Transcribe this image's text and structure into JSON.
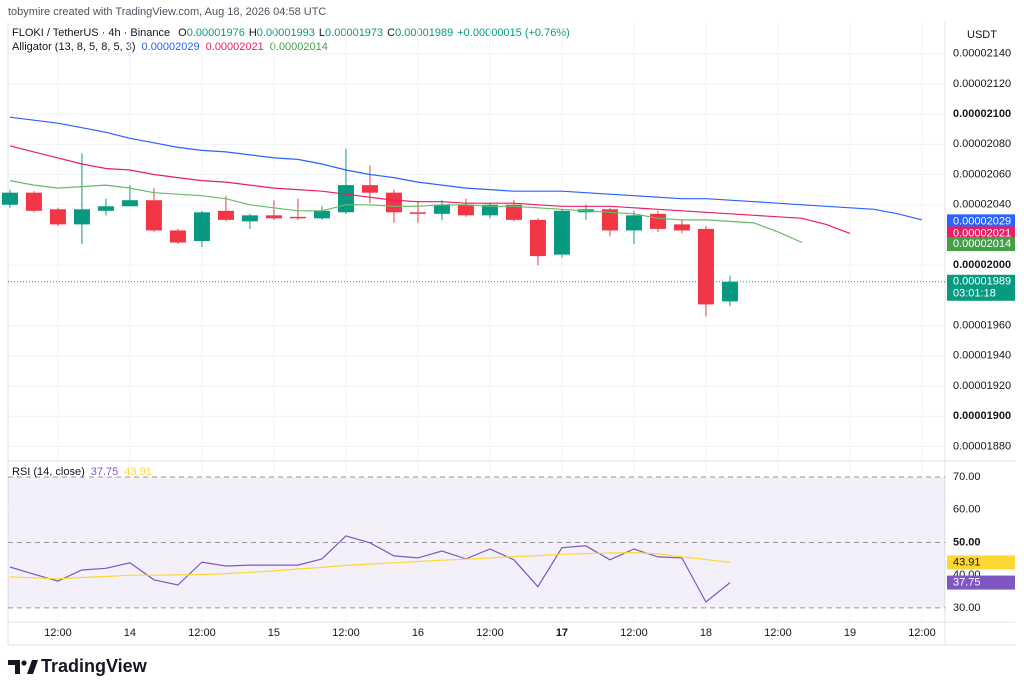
{
  "header": {
    "credit": "tobymire created with TradingView.com, Aug 18, 2026 04:58 UTC",
    "currency": "USDT"
  },
  "legend": {
    "symbol": "FLOKI / TetherUS · 4h · Binance",
    "fields": [
      {
        "key": "O",
        "value": "0.00001976"
      },
      {
        "key": "H",
        "value": "0.00001993"
      },
      {
        "key": "L",
        "value": "0.00001973"
      },
      {
        "key": "C",
        "value": "0.00001989"
      }
    ],
    "change": "+0.00000015 (+0.76%)"
  },
  "footer": {
    "brand": "TradingView"
  },
  "chart_data": [
    {
      "type": "candlestick",
      "indicator_label": "Alligator (13, 8, 5, 8, 5, 3)",
      "legend_values": [
        "0.00002029",
        "0.00002021",
        "0.00002014"
      ],
      "up_color": "#089981",
      "down_color": "#f23645",
      "categories": [
        null,
        null,
        null,
        null,
        null,
        null,
        null,
        null,
        null,
        null,
        null,
        null,
        null,
        null,
        null,
        null,
        null,
        null,
        null,
        null,
        null,
        null,
        null,
        null,
        null,
        null,
        null,
        null,
        null,
        null,
        null,
        null,
        null,
        null,
        null,
        null,
        null,
        null,
        null
      ],
      "open": [
        2.04e-05,
        2.048e-05,
        2.037e-05,
        2.027e-05,
        2.036e-05,
        2.039e-05,
        2.043e-05,
        2.023e-05,
        2.016e-05,
        2.036e-05,
        2.029e-05,
        2.033e-05,
        2.032e-05,
        2.031e-05,
        2.035e-05,
        2.053e-05,
        2.048e-05,
        2.035e-05,
        2.034e-05,
        2.04e-05,
        2.033e-05,
        2.04e-05,
        2.03e-05,
        2.007e-05,
        2.035e-05,
        2.037e-05,
        2.023e-05,
        2.034e-05,
        2.027e-05,
        2.024e-05,
        1.976e-05,
        null,
        null,
        null,
        null,
        null,
        null,
        null,
        null
      ],
      "high": [
        2.05e-05,
        2.049e-05,
        2.038e-05,
        2.074e-05,
        2.044e-05,
        2.053e-05,
        2.051e-05,
        2.024e-05,
        2.036e-05,
        2.046e-05,
        2.034e-05,
        2.043e-05,
        2.044e-05,
        2.039e-05,
        2.077e-05,
        2.066e-05,
        2.05e-05,
        2.042e-05,
        2.043e-05,
        2.044e-05,
        2.041e-05,
        2.043e-05,
        2.031e-05,
        2.037e-05,
        2.04e-05,
        2.038e-05,
        2.036e-05,
        2.036e-05,
        2.03e-05,
        2.026e-05,
        1.993e-05,
        null,
        null,
        null,
        null,
        null,
        null,
        null,
        null
      ],
      "low": [
        2.038e-05,
        2.035e-05,
        2.026e-05,
        2.014e-05,
        2.033e-05,
        2.039e-05,
        2.022e-05,
        2.014e-05,
        2.012e-05,
        2.029e-05,
        2.024e-05,
        2.03e-05,
        2.03e-05,
        2.03e-05,
        2.034e-05,
        2.041e-05,
        2.028e-05,
        2.028e-05,
        2.03e-05,
        2.032e-05,
        2.031e-05,
        2.029e-05,
        2e-05,
        2.005e-05,
        2.03e-05,
        2.019e-05,
        2.014e-05,
        2.022e-05,
        2.021e-05,
        1.966e-05,
        1.973e-05,
        null,
        null,
        null,
        null,
        null,
        null,
        null,
        null
      ],
      "close": [
        2.048e-05,
        2.036e-05,
        2.027e-05,
        2.037e-05,
        2.039e-05,
        2.043e-05,
        2.023e-05,
        2.015e-05,
        2.035e-05,
        2.03e-05,
        2.033e-05,
        2.031e-05,
        2.031e-05,
        2.036e-05,
        2.053e-05,
        2.048e-05,
        2.035e-05,
        2.034e-05,
        2.04e-05,
        2.033e-05,
        2.04e-05,
        2.03e-05,
        2.006e-05,
        2.036e-05,
        2.037e-05,
        2.023e-05,
        2.033e-05,
        2.024e-05,
        2.023e-05,
        1.974e-05,
        1.989e-05,
        null,
        null,
        null,
        null,
        null,
        null,
        null,
        null
      ],
      "series": [
        {
          "color": "#2962ff",
          "values": [
            2.098e-05,
            2.096e-05,
            2.094e-05,
            2.091e-05,
            2.088e-05,
            2.084e-05,
            2.081e-05,
            2.078e-05,
            2.076e-05,
            2.075e-05,
            2.073e-05,
            2.071e-05,
            2.07e-05,
            2.067e-05,
            2.063e-05,
            2.06e-05,
            2.058e-05,
            2.055e-05,
            2.053e-05,
            2.051e-05,
            2.05e-05,
            2.049e-05,
            2.049e-05,
            2.049e-05,
            2.048e-05,
            2.047e-05,
            2.046e-05,
            2.045e-05,
            2.044e-05,
            2.044e-05,
            2.043e-05,
            2.042e-05,
            2.041e-05,
            2.04e-05,
            2.039e-05,
            2.038e-05,
            2.037e-05,
            2.034e-05,
            2.03e-05
          ]
        },
        {
          "color": "#e91e63",
          "values": [
            2.079e-05,
            2.075e-05,
            2.071e-05,
            2.067e-05,
            2.064e-05,
            2.063e-05,
            2.06e-05,
            2.058e-05,
            2.056e-05,
            2.055e-05,
            2.053e-05,
            2.051e-05,
            2.05e-05,
            2.049e-05,
            2.047e-05,
            2.045e-05,
            2.043e-05,
            2.042e-05,
            2.042e-05,
            2.041e-05,
            2.041e-05,
            2.041e-05,
            2.04e-05,
            2.039e-05,
            2.039e-05,
            2.039e-05,
            2.038e-05,
            2.037e-05,
            2.036e-05,
            2.035e-05,
            2.034e-05,
            2.033e-05,
            2.032e-05,
            2.031e-05,
            2.027e-05,
            2.021e-05,
            null,
            null,
            null
          ]
        },
        {
          "color": "#66bb6a",
          "values": [
            2.056e-05,
            2.053e-05,
            2.051e-05,
            2.052e-05,
            2.053e-05,
            2.051e-05,
            2.048e-05,
            2.047e-05,
            2.046e-05,
            2.044e-05,
            2.04e-05,
            2.038e-05,
            2.036e-05,
            2.036e-05,
            2.04e-05,
            2.04e-05,
            2.039e-05,
            2.039e-05,
            2.04e-05,
            2.04e-05,
            2.039e-05,
            2.039e-05,
            2.038e-05,
            2.037e-05,
            2.036e-05,
            2.035e-05,
            2.034e-05,
            2.031e-05,
            2.03e-05,
            2.03e-05,
            2.029e-05,
            2.028e-05,
            2.022e-05,
            2.015e-05,
            null,
            null,
            null,
            null,
            null
          ]
        }
      ],
      "price_tags": [
        {
          "value": 2.029e-05,
          "label": "0.00002029",
          "color": "#2962ff"
        },
        {
          "value": 2.021e-05,
          "label": "0.00002021",
          "color": "#e91e63"
        },
        {
          "value": 2.014e-05,
          "label": "0.00002014",
          "color": "#43a047"
        },
        {
          "value": 1.989e-05,
          "label": "0.00001989",
          "sublabel": "03:01:18",
          "color": "#089981"
        }
      ],
      "xlim": [
        -0.08,
        38.96
      ],
      "ylim": [
        1.871e-05,
        2.161e-05
      ],
      "yticks": [
        {
          "value": 2.14e-05,
          "label": "0.00002140"
        },
        {
          "value": 2.12e-05,
          "label": "0.00002120"
        },
        {
          "value": 2.1e-05,
          "label": "0.00002100",
          "bold": true
        },
        {
          "value": 2.08e-05,
          "label": "0.00002080"
        },
        {
          "value": 2.06e-05,
          "label": "0.00002060"
        },
        {
          "value": 2.04e-05,
          "label": "0.00002040"
        },
        {
          "value": 2e-05,
          "label": "0.00002000",
          "bold": true
        },
        {
          "value": 1.96e-05,
          "label": "0.00001960"
        },
        {
          "value": 1.94e-05,
          "label": "0.00001940"
        },
        {
          "value": 1.92e-05,
          "label": "0.00001920"
        },
        {
          "value": 1.9e-05,
          "label": "0.00001900",
          "bold": true
        },
        {
          "value": 1.88e-05,
          "label": "0.00001880"
        }
      ],
      "grid": true
    },
    {
      "type": "line",
      "indicator_label": "RSI (14, close)",
      "legend_values": [
        "37.75",
        "43.91"
      ],
      "categories": [
        null,
        null,
        null,
        null,
        null,
        null,
        null,
        null,
        null,
        null,
        null,
        null,
        null,
        null,
        null,
        null,
        null,
        null,
        null,
        null,
        null,
        null,
        null,
        null,
        null,
        null,
        null,
        null,
        null,
        null,
        null
      ],
      "series": [
        {
          "color": "#7e57c2",
          "values": [
            42.5,
            40.3,
            38.2,
            41.6,
            42.1,
            43.8,
            38.6,
            37,
            44,
            42.8,
            43.1,
            43.1,
            43.1,
            45,
            52,
            49.9,
            45.9,
            45.3,
            47.4,
            45,
            48,
            44.7,
            36.5,
            48.4,
            49,
            44.7,
            48,
            45.6,
            45.3,
            31.8,
            37.75
          ]
        },
        {
          "color": "#fdd835",
          "values": [
            39.5,
            39.2,
            38.9,
            39.3,
            39.6,
            40,
            40,
            40.1,
            40.2,
            40.5,
            40.9,
            41.3,
            41.9,
            42.4,
            43,
            43.4,
            43.8,
            44.2,
            44.6,
            44.9,
            45.3,
            45.7,
            46,
            46.4,
            46.6,
            46.8,
            46.9,
            46.5,
            45.6,
            44.8,
            43.91
          ]
        }
      ],
      "price_tags": [
        {
          "value": 43.91,
          "label": "43.91",
          "color": "#fdd835",
          "text_color": "#131722"
        },
        {
          "value": 37.75,
          "label": "37.75",
          "color": "#7e57c2"
        }
      ],
      "band_color": "#7e57c2",
      "xlim": [
        -0.08,
        38.96
      ],
      "ylim": [
        25.7,
        74.6
      ],
      "yticks": [
        {
          "value": 70,
          "label": "70.00",
          "dashed": true
        },
        {
          "value": 60,
          "label": "60.00"
        },
        {
          "value": 50,
          "label": "50.00",
          "dashed": true,
          "bold": true
        },
        {
          "value": 40,
          "label": "40.00"
        },
        {
          "value": 30,
          "label": "30.00",
          "dashed": true
        }
      ],
      "xticks": [
        {
          "value": 2,
          "label": "12:00"
        },
        {
          "value": 5,
          "label": "14"
        },
        {
          "value": 8,
          "label": "12:00"
        },
        {
          "value": 11,
          "label": "15"
        },
        {
          "value": 14,
          "label": "12:00"
        },
        {
          "value": 17,
          "label": "16"
        },
        {
          "value": 20,
          "label": "12:00"
        },
        {
          "value": 23,
          "label": "17",
          "bold": true
        },
        {
          "value": 26,
          "label": "12:00"
        },
        {
          "value": 29,
          "label": "18"
        },
        {
          "value": 32,
          "label": "12:00"
        },
        {
          "value": 35,
          "label": "19"
        },
        {
          "value": 38,
          "label": "12:00"
        }
      ],
      "grid": true
    }
  ]
}
